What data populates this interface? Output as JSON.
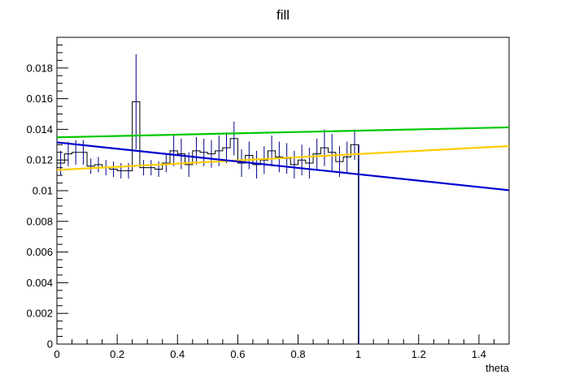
{
  "chart_data": {
    "type": "line",
    "title": "fill",
    "xlabel": "theta",
    "ylabel": "",
    "xlim": [
      0,
      1.5
    ],
    "ylim": [
      0,
      0.02
    ],
    "grid": false,
    "legend": "none",
    "x_tick_labels": [
      "0",
      "0.2",
      "0.4",
      "0.6",
      "0.8",
      "1",
      "1.2",
      "1.4"
    ],
    "y_tick_labels": [
      "0",
      "0.002",
      "0.004",
      "0.006",
      "0.008",
      "0.01",
      "0.012",
      "0.014",
      "0.016",
      "0.018"
    ],
    "histogram": {
      "color": "#000000",
      "error_color": "#00008b",
      "bin_width": 0.025,
      "x_start": 0.0,
      "values": [
        0.0118,
        0.0124,
        0.0125,
        0.0125,
        0.0116,
        0.0117,
        0.0115,
        0.0114,
        0.0113,
        0.0113,
        0.0158,
        0.0115,
        0.0115,
        0.0114,
        0.0118,
        0.0126,
        0.0124,
        0.0117,
        0.0126,
        0.0125,
        0.0124,
        0.0126,
        0.0128,
        0.0134,
        0.0118,
        0.0123,
        0.0117,
        0.012,
        0.0126,
        0.0122,
        0.0121,
        0.0117,
        0.012,
        0.0118,
        0.0124,
        0.0128,
        0.0125,
        0.0119,
        0.0122,
        0.013,
        0.0
      ],
      "errors": [
        0.0008,
        0.0008,
        0.0008,
        0.0008,
        0.0005,
        0.0005,
        0.0005,
        0.0005,
        0.0005,
        0.0005,
        0.0031,
        0.0005,
        0.0005,
        0.0005,
        0.0006,
        0.001,
        0.001,
        0.0008,
        0.0009,
        0.0009,
        0.0009,
        0.001,
        0.001,
        0.0011,
        0.0009,
        0.0009,
        0.0009,
        0.0009,
        0.001,
        0.001,
        0.001,
        0.0009,
        0.001,
        0.001,
        0.001,
        0.0012,
        0.0012,
        0.001,
        0.001,
        0.001,
        0.0
      ]
    },
    "series": [
      {
        "color": "#00c800",
        "x": [
          0,
          1.5
        ],
        "y": [
          0.01348,
          0.01413
        ]
      },
      {
        "color": "#ffcc00",
        "x": [
          0,
          1.5
        ],
        "y": [
          0.01135,
          0.01291
        ]
      },
      {
        "color": "#0000d0",
        "x": [
          0,
          1.5
        ],
        "y": [
          0.01315,
          0.01003
        ]
      }
    ]
  }
}
